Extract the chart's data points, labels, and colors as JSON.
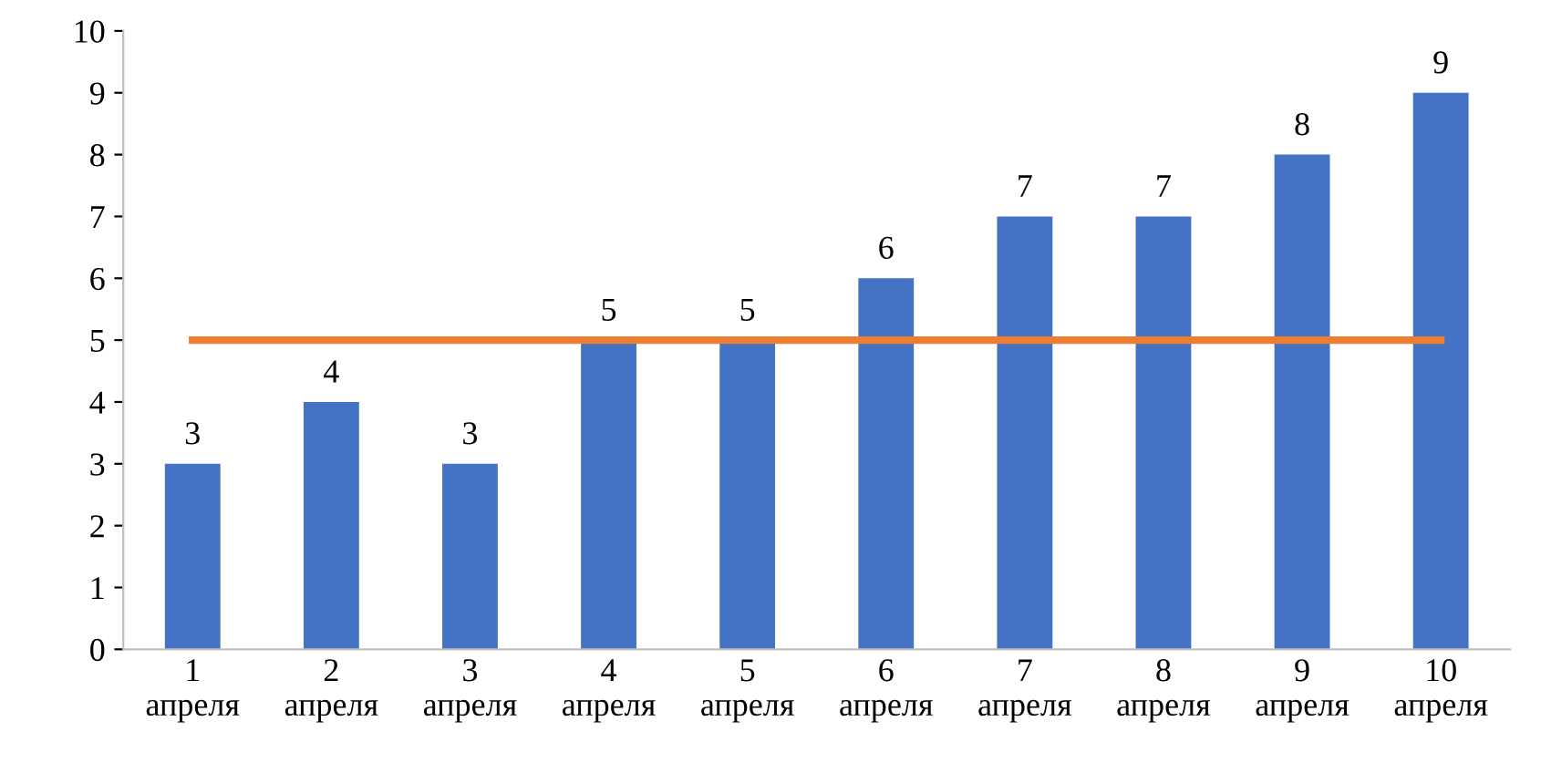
{
  "chart_data": {
    "type": "bar",
    "categories": [
      "1\nапреля",
      "2\nапреля",
      "3\nапреля",
      "4\nапреля",
      "5\nапреля",
      "6\nапреля",
      "7\nапреля",
      "8\nапреля",
      "9\nапреля",
      "10\nапреля"
    ],
    "series": [
      {
        "color": "#4472c4",
        "values": [
          3,
          4,
          3,
          5,
          5,
          6,
          7,
          7,
          8,
          9
        ],
        "value_labels": [
          "3",
          "4",
          "3",
          "5",
          "5",
          "6",
          "7",
          "7",
          "8",
          "9"
        ]
      },
      {
        "type": "line",
        "color": "#ed7d31",
        "values": [
          5,
          5,
          5,
          5,
          5,
          5,
          5,
          5,
          5,
          5
        ]
      }
    ],
    "ylim": [
      0,
      10
    ],
    "yticks": [
      0,
      1,
      2,
      3,
      4,
      5,
      6,
      7,
      8,
      9,
      10
    ],
    "grid": false,
    "legend": false,
    "marker": "none",
    "line_style": "solid"
  }
}
